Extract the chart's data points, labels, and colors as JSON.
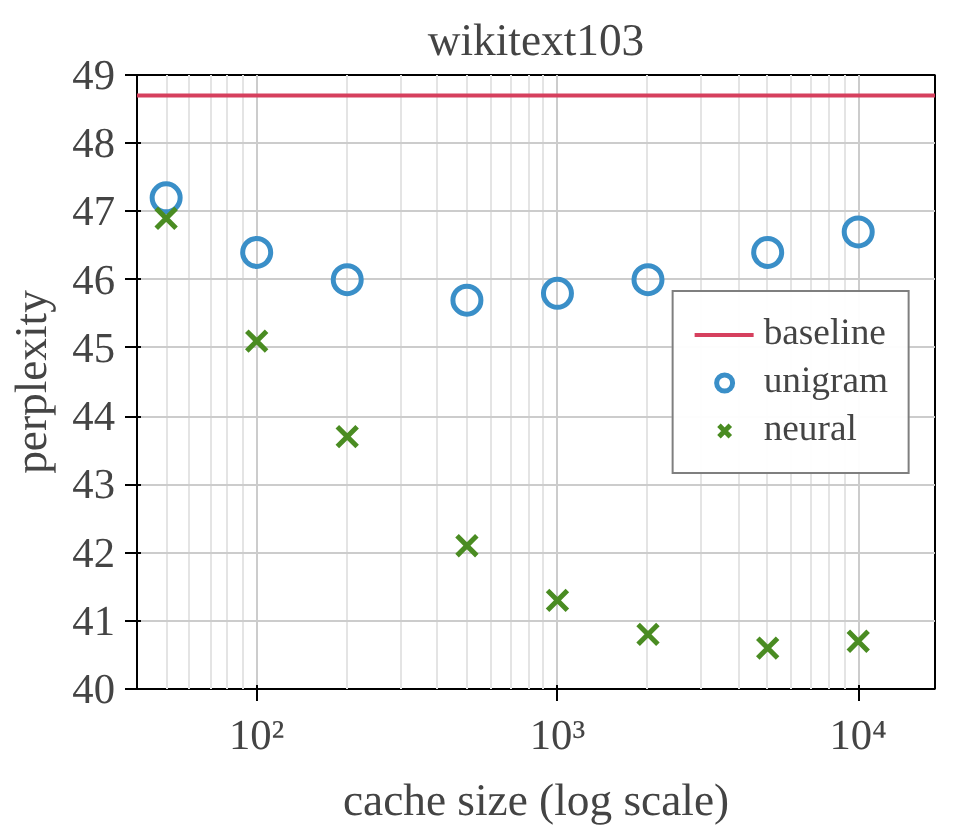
{
  "chart_data": {
    "type": "scatter",
    "title": "wikitext103",
    "xlabel": "cache size (log scale)",
    "ylabel": "perplexity",
    "log": "x",
    "xlim": [
      40,
      18000
    ],
    "ylim": [
      40,
      49
    ],
    "xticks": [
      {
        "value": 100,
        "label": "10²"
      },
      {
        "value": 1000,
        "label": "10³"
      },
      {
        "value": 10000,
        "label": "10⁴"
      }
    ],
    "yticks": [
      40,
      41,
      42,
      43,
      44,
      45,
      46,
      47,
      48,
      49
    ],
    "grid": true,
    "legend": "right",
    "ref_lines": [
      {
        "axis": "y",
        "value": 48.7,
        "label": "baseline",
        "color": "#d6405e"
      }
    ],
    "series": [
      {
        "name": "unigram",
        "color": "#3a8fc8",
        "marker": "circle",
        "x": [
          50,
          100,
          200,
          500,
          1000,
          2000,
          5000,
          10000
        ],
        "values": [
          47.2,
          46.4,
          46.0,
          45.7,
          45.8,
          46.0,
          46.4,
          46.7
        ]
      },
      {
        "name": "neural",
        "color": "#4a8c22",
        "marker": "cross",
        "x": [
          50,
          100,
          200,
          500,
          1000,
          2000,
          5000,
          10000
        ],
        "values": [
          46.9,
          45.1,
          43.7,
          42.1,
          41.3,
          40.8,
          40.6,
          40.7
        ]
      }
    ]
  }
}
